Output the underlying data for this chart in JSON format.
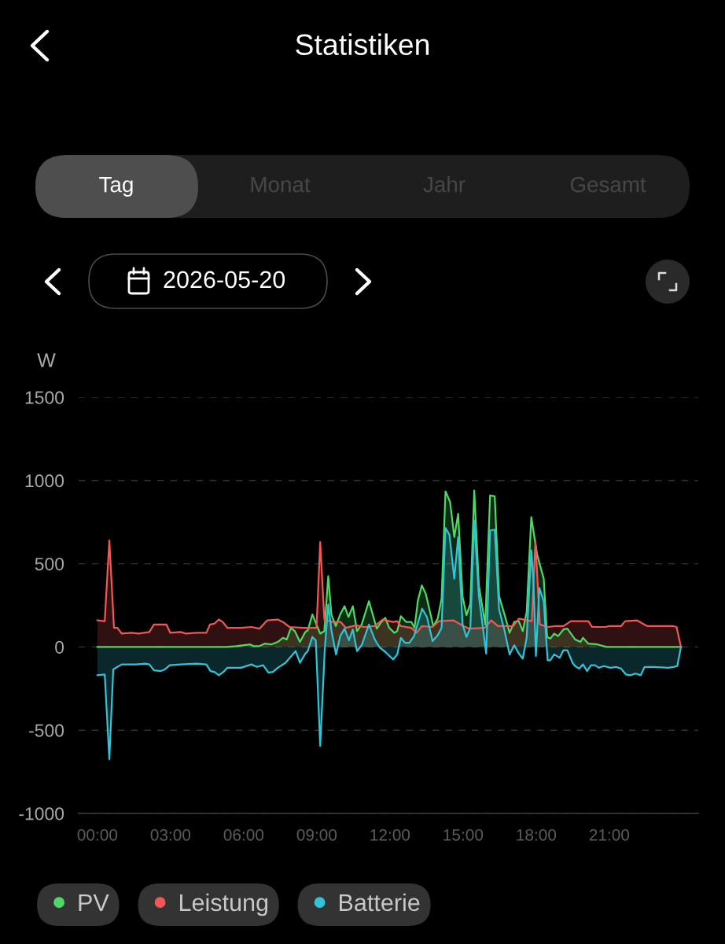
{
  "chart_data": {
    "type": "area",
    "title": "Statistiken",
    "ylabel": "W",
    "annotations": [
      "Tag",
      "Monat",
      "Jahr",
      "Gesamt",
      "2026-05-20"
    ],
    "xlim": [
      -0.77,
      24.65
    ],
    "xticks": [
      {
        "value": 0,
        "label": "00:00"
      },
      {
        "value": 3,
        "label": "03:00"
      },
      {
        "value": 6,
        "label": "06:00"
      },
      {
        "value": 9,
        "label": "09:00"
      },
      {
        "value": 12,
        "label": "12:00"
      },
      {
        "value": 15,
        "label": "15:00"
      },
      {
        "value": 18,
        "label": "18:00"
      },
      {
        "value": 21,
        "label": "21:00"
      }
    ],
    "ylim": [
      -1000,
      1500
    ],
    "yticks": [
      -1000,
      -500,
      0,
      500,
      1000,
      1500
    ],
    "grid": "y",
    "legend": "bottom",
    "line_style": "solid",
    "series": [
      {
        "name": "PV",
        "color": "#4cd964",
        "x": [
          0,
          5.3,
          5.7,
          6.27,
          6.4,
          6.65,
          6.86,
          7.13,
          7.4,
          7.61,
          7.77,
          7.94,
          8.1,
          8.31,
          8.53,
          8.63,
          8.82,
          8.99,
          9.14,
          9.31,
          9.47,
          9.6,
          9.78,
          9.96,
          10.14,
          10.3,
          10.48,
          10.65,
          10.84,
          11.14,
          11.46,
          11.65,
          11.81,
          11.97,
          12.18,
          12.3,
          12.45,
          12.67,
          12.88,
          13.01,
          13.15,
          13.31,
          13.47,
          13.78,
          13.96,
          14.12,
          14.28,
          14.47,
          14.64,
          14.8,
          14.98,
          15.14,
          15.3,
          15.46,
          15.65,
          15.91,
          16.11,
          16.3,
          16.48,
          16.7,
          16.91,
          17.1,
          17.29,
          17.45,
          17.61,
          17.8,
          18.04,
          18.31,
          18.45,
          18.58,
          18.74,
          18.9,
          19.12,
          19.28,
          19.6,
          19.82,
          19.92,
          20.14,
          20.52,
          20.89,
          23.94
        ],
        "values": [
          0,
          0,
          5,
          15,
          5,
          5,
          20,
          15,
          30,
          55,
          45,
          115,
          95,
          30,
          90,
          100,
          195,
          135,
          80,
          95,
          425,
          195,
          125,
          195,
          245,
          180,
          245,
          95,
          135,
          275,
          110,
          150,
          175,
          115,
          85,
          95,
          185,
          150,
          150,
          115,
          280,
          370,
          320,
          125,
          170,
          290,
          935,
          870,
          660,
          800,
          305,
          190,
          260,
          940,
          370,
          135,
          910,
          905,
          305,
          195,
          85,
          150,
          155,
          95,
          210,
          780,
          555,
          410,
          60,
          50,
          80,
          65,
          105,
          110,
          45,
          30,
          55,
          20,
          15,
          0,
          0
        ]
      },
      {
        "name": "Leistung",
        "color": "#f25757",
        "x": [
          0,
          0.3,
          0.49,
          0.68,
          0.82,
          1.0,
          1.38,
          1.7,
          2.13,
          2.32,
          2.6,
          2.83,
          2.99,
          3.42,
          3.63,
          4.06,
          4.47,
          4.62,
          4.8,
          4.98,
          5.14,
          5.33,
          5.89,
          6.32,
          6.65,
          6.97,
          7.4,
          7.61,
          7.88,
          8.47,
          8.99,
          9.14,
          9.31,
          9.64,
          9.98,
          10.19,
          10.62,
          10.94,
          11.38,
          11.7,
          12.13,
          12.29,
          12.45,
          12.88,
          13.1,
          13.31,
          13.74,
          14.01,
          14.6,
          15.03,
          15.25,
          15.89,
          16.16,
          16.43,
          17.06,
          17.29,
          17.82,
          17.97,
          18.15,
          18.47,
          18.8,
          19.12,
          19.42,
          20.14,
          20.3,
          20.84,
          21.0,
          21.48,
          21.65,
          22.13,
          22.56,
          23.2,
          23.63,
          23.76,
          23.94
        ],
        "values": [
          160,
          155,
          640,
          115,
          115,
          80,
          85,
          80,
          90,
          135,
          135,
          135,
          85,
          90,
          80,
          85,
          85,
          135,
          140,
          165,
          150,
          115,
          115,
          120,
          110,
          160,
          165,
          150,
          120,
          115,
          115,
          630,
          165,
          150,
          150,
          115,
          130,
          120,
          125,
          165,
          150,
          155,
          125,
          115,
          85,
          125,
          120,
          155,
          160,
          125,
          110,
          115,
          160,
          125,
          125,
          170,
          155,
          635,
          135,
          120,
          125,
          125,
          155,
          155,
          120,
          120,
          125,
          125,
          155,
          160,
          125,
          125,
          125,
          120,
          0
        ]
      },
      {
        "name": "Batterie",
        "color": "#33c3d6",
        "x": [
          0,
          0.3,
          0.49,
          0.65,
          0.82,
          1.0,
          1.59,
          1.97,
          2.13,
          2.32,
          2.6,
          2.77,
          2.97,
          3.42,
          4.06,
          4.47,
          4.64,
          4.8,
          4.98,
          5.17,
          5.33,
          5.89,
          6.32,
          6.54,
          6.8,
          7.02,
          7.2,
          7.4,
          7.72,
          8.13,
          8.31,
          8.53,
          8.63,
          8.82,
          8.96,
          9.14,
          9.33,
          9.47,
          9.6,
          9.79,
          9.96,
          10.14,
          10.32,
          10.48,
          10.65,
          10.84,
          11.14,
          11.38,
          11.59,
          11.81,
          12.13,
          12.3,
          12.45,
          12.62,
          12.8,
          12.99,
          13.32,
          13.52,
          13.75,
          13.96,
          14.12,
          14.28,
          14.44,
          14.64,
          14.8,
          14.98,
          15.14,
          15.3,
          15.46,
          15.65,
          15.95,
          16.11,
          16.3,
          16.48,
          16.7,
          16.91,
          17.1,
          17.29,
          17.45,
          17.61,
          17.8,
          17.88,
          17.99,
          18.13,
          18.31,
          18.47,
          18.58,
          18.74,
          18.96,
          19.12,
          19.28,
          19.49,
          19.6,
          19.76,
          19.92,
          20.09,
          20.25,
          20.41,
          20.57,
          20.78,
          21.05,
          21.27,
          21.48,
          21.68,
          21.86,
          22.08,
          22.29,
          22.45,
          22.88,
          23.42,
          23.63,
          23.79,
          23.94
        ],
        "values": [
          -170,
          -165,
          -675,
          -135,
          -120,
          -105,
          -105,
          -100,
          -105,
          -140,
          -145,
          -135,
          -110,
          -105,
          -100,
          -105,
          -145,
          -150,
          -170,
          -150,
          -125,
          -125,
          -105,
          -120,
          -110,
          -155,
          -150,
          -125,
          -95,
          -25,
          -95,
          -40,
          -25,
          60,
          40,
          -595,
          -10,
          255,
          100,
          -45,
          65,
          110,
          40,
          105,
          -25,
          10,
          135,
          45,
          -5,
          -30,
          -75,
          -45,
          55,
          25,
          25,
          65,
          230,
          180,
          35,
          70,
          115,
          715,
          675,
          410,
          660,
          135,
          60,
          115,
          760,
          305,
          -40,
          700,
          705,
          225,
          100,
          -45,
          10,
          -40,
          -70,
          55,
          580,
          415,
          -55,
          355,
          275,
          -80,
          -80,
          -45,
          -65,
          -20,
          -20,
          -95,
          -115,
          -130,
          -105,
          -145,
          -110,
          -110,
          -125,
          -115,
          -125,
          -120,
          -130,
          -165,
          -170,
          -160,
          -170,
          -120,
          -120,
          -125,
          -120,
          -115,
          0
        ]
      }
    ]
  }
}
